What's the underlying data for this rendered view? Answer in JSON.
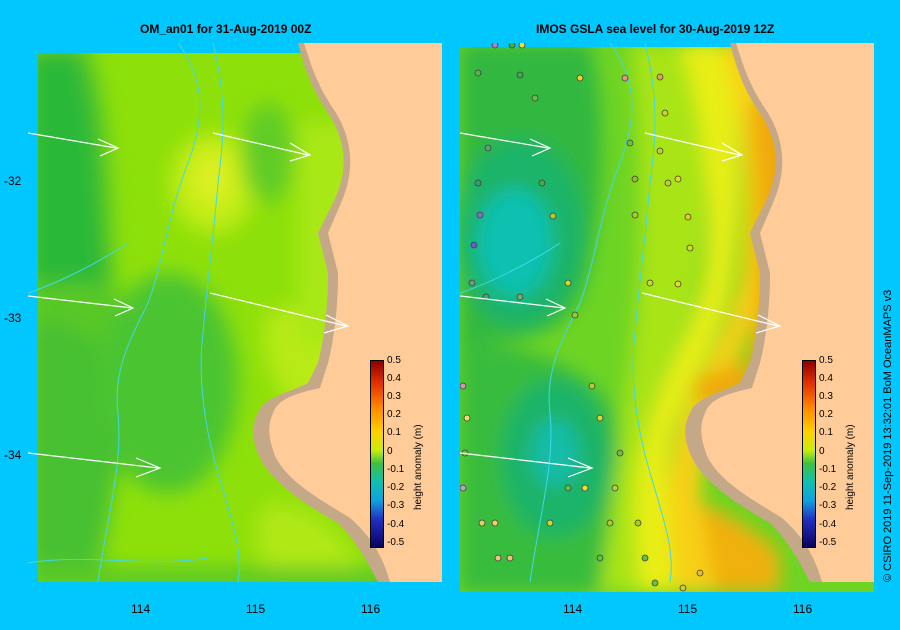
{
  "panels": [
    {
      "title": "OM_an01  for 31-Aug-2019 00Z"
    },
    {
      "title": "IMOS GSLA sea level  for 30-Aug-2019 12Z"
    }
  ],
  "axes": {
    "x_ticks": [
      "114",
      "115",
      "116"
    ],
    "y_ticks": [
      "-32",
      "-33",
      "-34"
    ]
  },
  "colorbar": {
    "title": "height anomaly (m)",
    "ticks": [
      "0.5",
      "0.4",
      "0.3",
      "0.2",
      "0.1",
      "0",
      "-0.1",
      "-0.2",
      "-0.3",
      "-0.4",
      "-0.5"
    ]
  },
  "credit": "© CSIRO 2019   11-Sep-2019 13:32:01 BoM OceanMAPS v3",
  "colors": {
    "frame": "#00c8ff",
    "land": "#ffcc99",
    "shelf": "#c4a888",
    "contour": "#40d8e8"
  }
}
